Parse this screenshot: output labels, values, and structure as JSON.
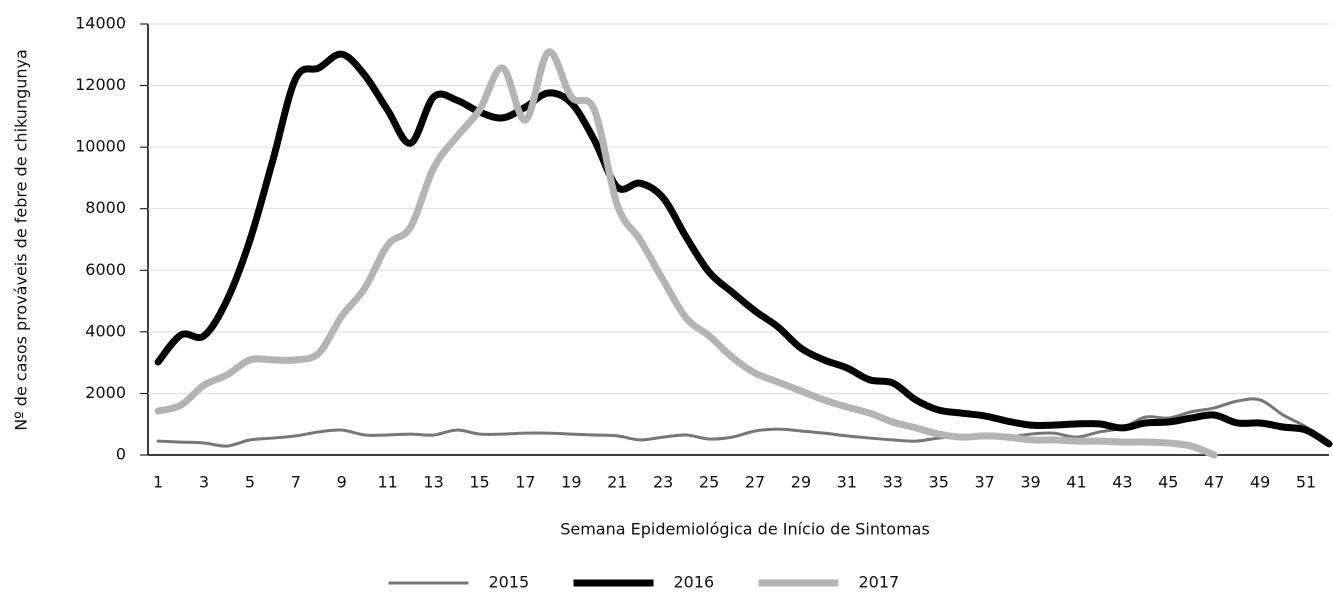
{
  "chart_data": {
    "type": "line",
    "x_label": "Semana Epidemiológica de Início de Sintomas",
    "y_label": "Nº de casos prováveis de  febre de chikungunya",
    "x": [
      1,
      2,
      3,
      4,
      5,
      6,
      7,
      8,
      9,
      10,
      11,
      12,
      13,
      14,
      15,
      16,
      17,
      18,
      19,
      20,
      21,
      22,
      23,
      24,
      25,
      26,
      27,
      28,
      29,
      30,
      31,
      32,
      33,
      34,
      35,
      36,
      37,
      38,
      39,
      40,
      41,
      42,
      43,
      44,
      45,
      46,
      47,
      48,
      49,
      50,
      51,
      52
    ],
    "xlim": [
      0.56,
      52
    ],
    "xticks": [
      1,
      3,
      5,
      7,
      9,
      11,
      13,
      15,
      17,
      19,
      21,
      23,
      25,
      27,
      29,
      31,
      33,
      35,
      37,
      39,
      41,
      43,
      45,
      47,
      49,
      51
    ],
    "ylim": [
      0,
      14000
    ],
    "yticks": [
      0,
      2000,
      4000,
      6000,
      8000,
      10000,
      12000,
      14000
    ],
    "grid": true,
    "legend": "bottom",
    "series": [
      {
        "name": "2015",
        "color": "#777777",
        "width": 3,
        "values": [
          450,
          420,
          390,
          290,
          490,
          550,
          620,
          750,
          810,
          650,
          650,
          680,
          650,
          810,
          680,
          680,
          710,
          710,
          680,
          650,
          620,
          490,
          580,
          650,
          520,
          580,
          780,
          840,
          780,
          710,
          620,
          550,
          490,
          450,
          550,
          620,
          620,
          580,
          680,
          710,
          580,
          750,
          880,
          1230,
          1200,
          1400,
          1530,
          1750,
          1790,
          1300,
          910,
          360
        ]
      },
      {
        "name": "2016",
        "color": "#000000",
        "width": 7,
        "values": [
          3020,
          3900,
          3870,
          5030,
          6980,
          9580,
          12240,
          12570,
          13020,
          12340,
          11200,
          10130,
          11630,
          11530,
          11140,
          10950,
          11300,
          11760,
          11430,
          10230,
          8700,
          8830,
          8350,
          7080,
          5940,
          5290,
          4680,
          4160,
          3470,
          3090,
          2830,
          2440,
          2340,
          1790,
          1460,
          1360,
          1270,
          1100,
          970,
          970,
          1010,
          1010,
          880,
          1040,
          1070,
          1200,
          1300,
          1040,
          1040,
          910,
          810,
          360
        ]
      },
      {
        "name": "2017",
        "color": "#b4b4b4",
        "width": 7,
        "values": [
          1430,
          1620,
          2270,
          2600,
          3090,
          3090,
          3090,
          3310,
          4510,
          5420,
          6820,
          7410,
          9320,
          10330,
          11210,
          12570,
          10880,
          13090,
          11630,
          11210,
          8120,
          6980,
          5680,
          4450,
          3870,
          3180,
          2660,
          2370,
          2080,
          1790,
          1560,
          1360,
          1070,
          880,
          680,
          580,
          620,
          580,
          490,
          490,
          450,
          450,
          420,
          420,
          390,
          290,
          0,
          null,
          null,
          null,
          null,
          null
        ]
      }
    ]
  }
}
